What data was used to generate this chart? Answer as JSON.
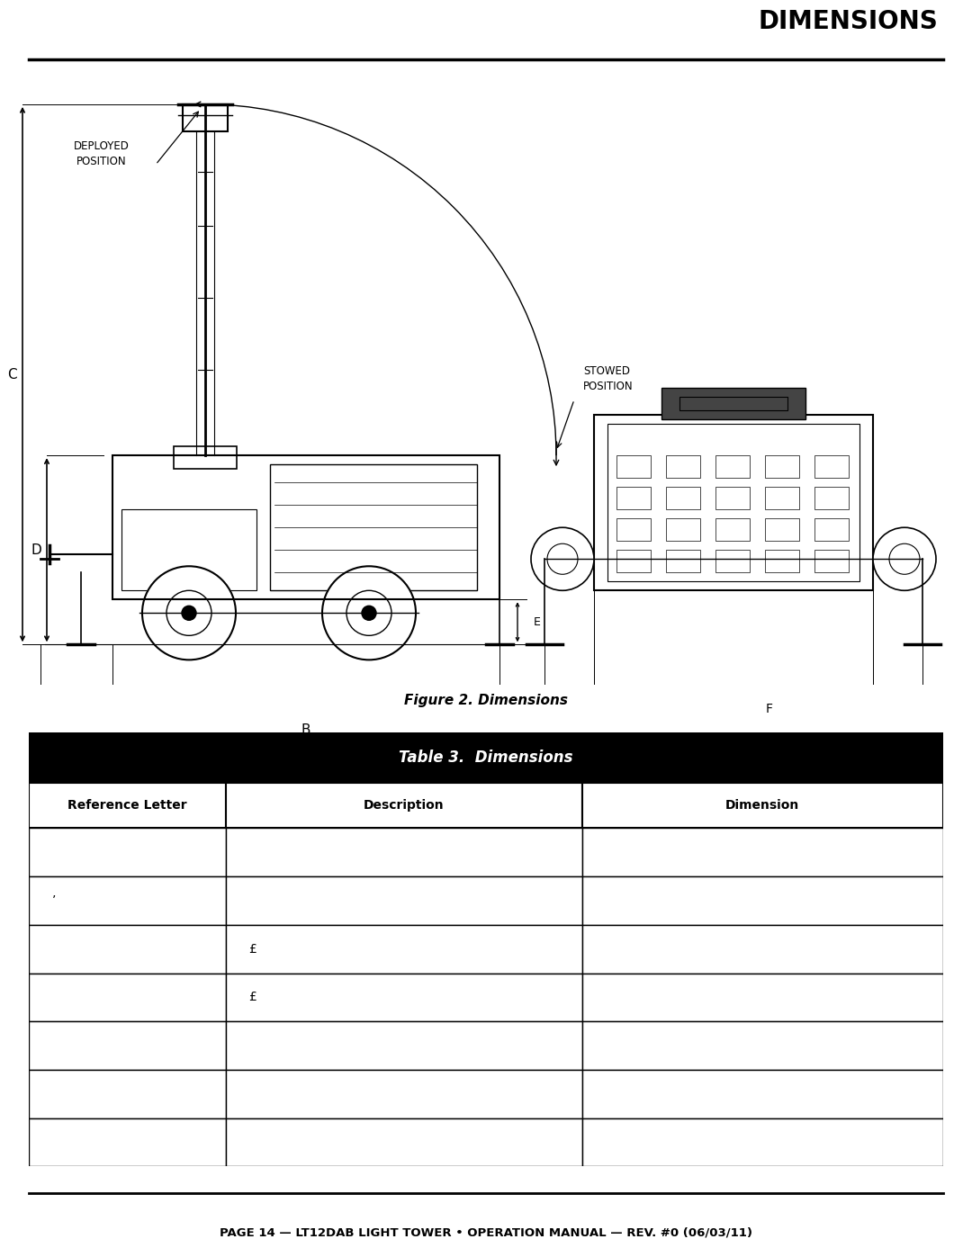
{
  "title": "DIMENSIONS",
  "figure_caption": "Figure 2. Dimensions",
  "table_title": "Table 3.  Dimensions",
  "table_headers": [
    "Reference Letter",
    "Description",
    "Dimension"
  ],
  "table_rows": [
    [
      "",
      "",
      ""
    ],
    [
      "’",
      "",
      ""
    ],
    [
      "",
      "£",
      ""
    ],
    [
      "",
      "£",
      ""
    ],
    [
      "",
      "",
      ""
    ],
    [
      "",
      "",
      ""
    ],
    [
      "",
      "",
      ""
    ]
  ],
  "footer_text": "PAGE 14 — LT12DAB LIGHT TOWER • OPERATION MANUAL — REV. #0 (06/03/11)",
  "bg_color": "#ffffff",
  "text_color": "#000000",
  "table_header_bg": "#000000",
  "table_header_text": "#ffffff",
  "col_header_text": "#000000",
  "col_header_bg": "#ffffff",
  "border_color": "#000000"
}
